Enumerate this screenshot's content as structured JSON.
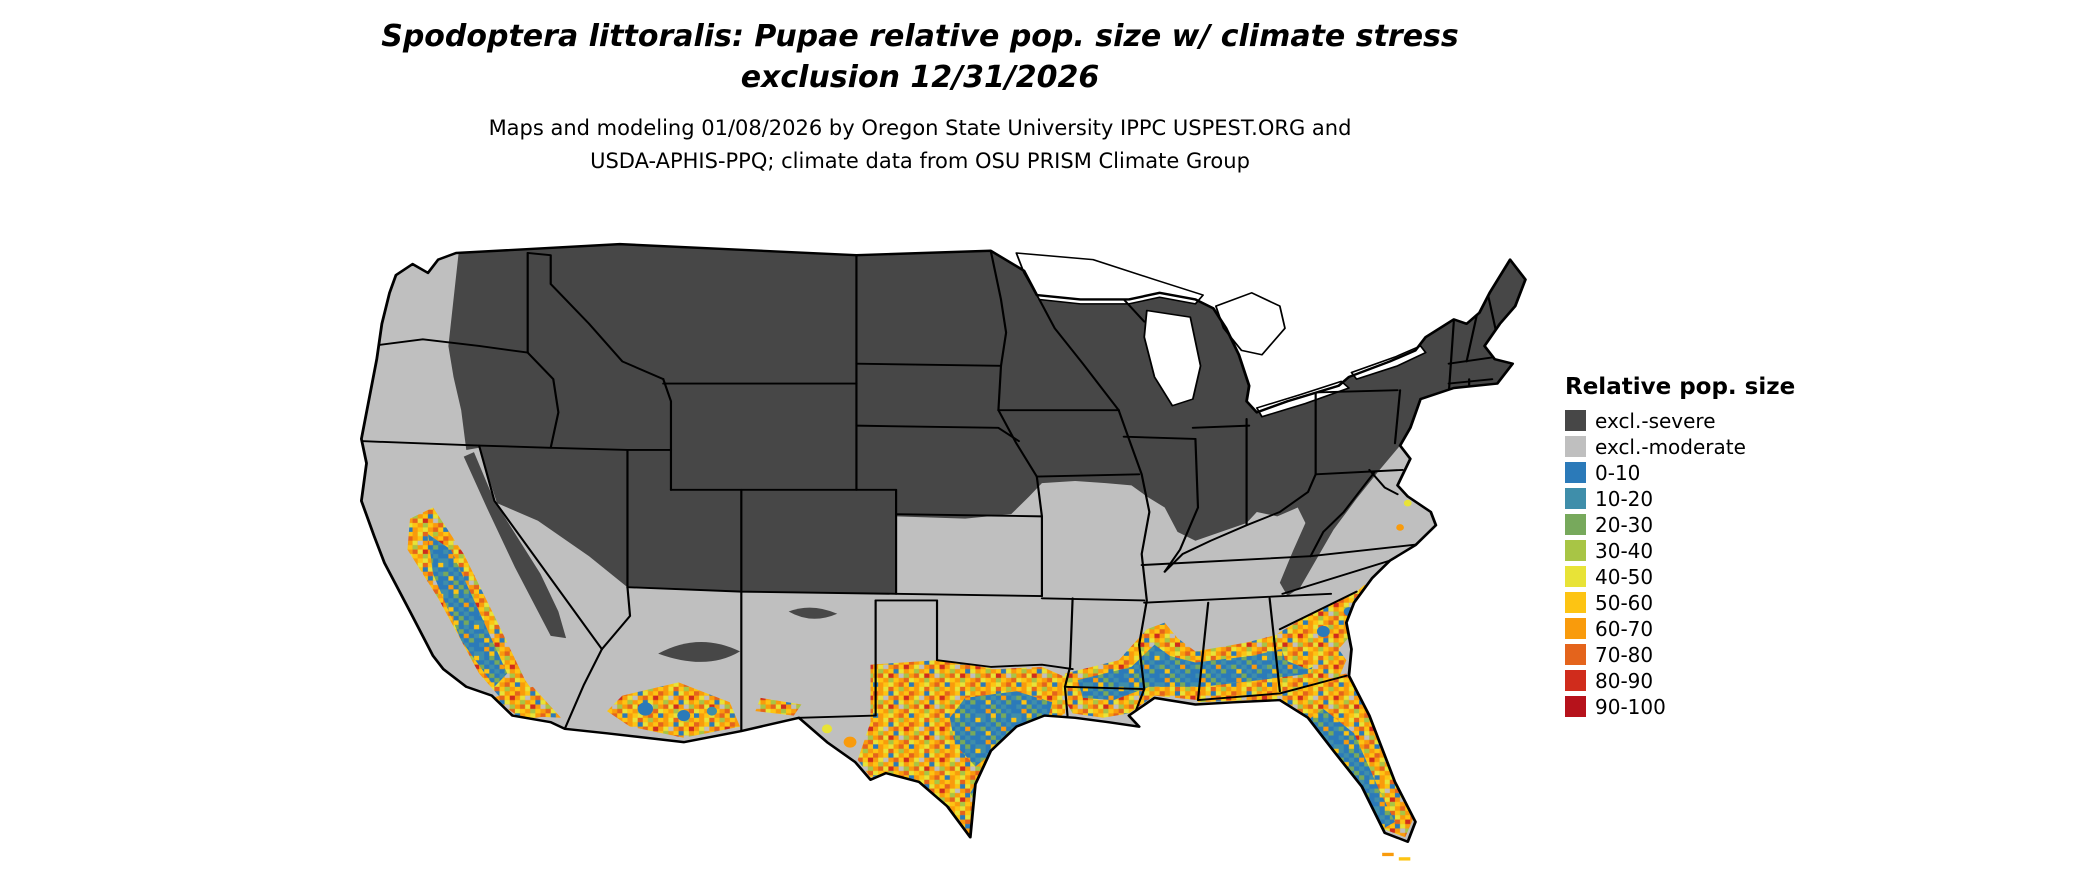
{
  "title": {
    "line1": "Spodoptera littoralis: Pupae relative pop. size w/ climate stress",
    "line2": "exclusion 12/31/2026"
  },
  "subtitle": {
    "line1": "Maps and modeling 01/08/2026 by Oregon State University IPPC USPEST.ORG and",
    "line2": "USDA-APHIS-PPQ; climate data from OSU PRISM Climate Group"
  },
  "legend": {
    "title": "Relative pop. size",
    "entries": [
      {
        "label": "excl.-severe",
        "color": "#474747"
      },
      {
        "label": "excl.-moderate",
        "color": "#bfbfbf"
      },
      {
        "label": "0-10",
        "color": "#2b7ab9"
      },
      {
        "label": "10-20",
        "color": "#3f8eaa"
      },
      {
        "label": "20-30",
        "color": "#77a95c"
      },
      {
        "label": "30-40",
        "color": "#a8c545"
      },
      {
        "label": "40-50",
        "color": "#e8e337"
      },
      {
        "label": "50-60",
        "color": "#fdc413"
      },
      {
        "label": "60-70",
        "color": "#f99b0c"
      },
      {
        "label": "70-80",
        "color": "#e4641c"
      },
      {
        "label": "80-90",
        "color": "#d02c1c"
      },
      {
        "label": "90-100",
        "color": "#b6121b"
      }
    ]
  },
  "map": {
    "region": "Continental United States",
    "base_color": "#bfbfbf",
    "severe_color": "#474747",
    "border_color": "#000000",
    "water_color": "#ffffff"
  }
}
